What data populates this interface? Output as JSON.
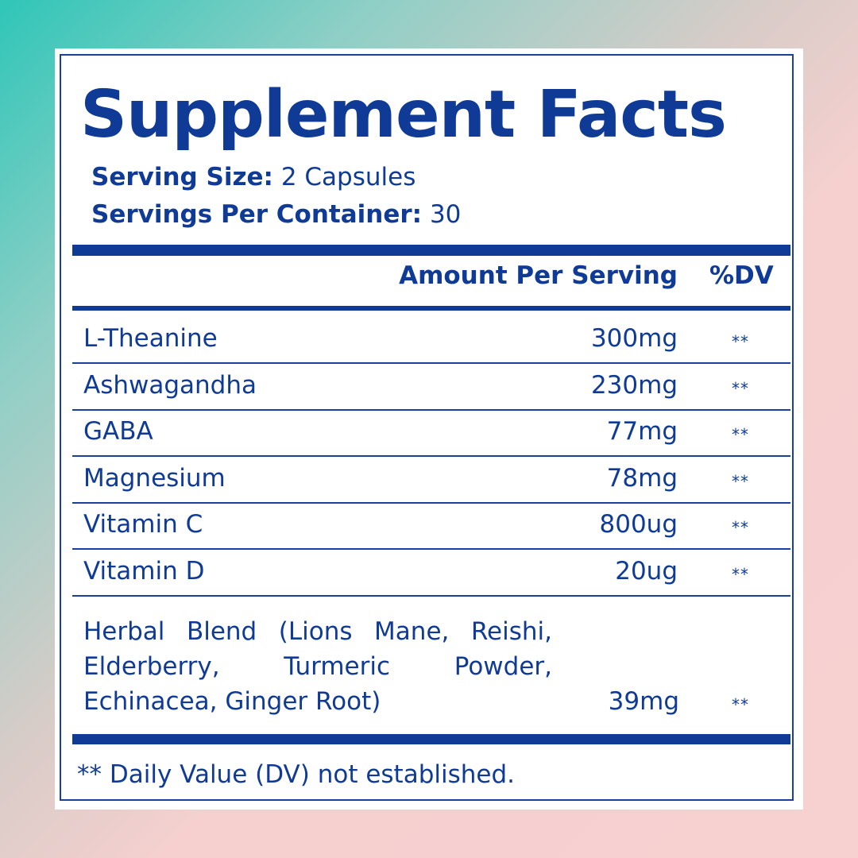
{
  "title": "Supplement Facts",
  "serving_size": {
    "label": "Serving Size:",
    "value": "2 Capsules"
  },
  "servings_per_container": {
    "label": "Servings Per Container:",
    "value": "30"
  },
  "header": {
    "amount": "Amount Per Serving",
    "dv": "%DV"
  },
  "rows": [
    {
      "name": "L-Theanine",
      "amount": "300mg",
      "dv": "**"
    },
    {
      "name": "Ashwagandha",
      "amount": "230mg",
      "dv": "**"
    },
    {
      "name": "GABA",
      "amount": "77mg",
      "dv": "**"
    },
    {
      "name": "Magnesium",
      "amount": "78mg",
      "dv": "**"
    },
    {
      "name": "Vitamin C",
      "amount": "800ug",
      "dv": "**"
    },
    {
      "name": "Vitamin D",
      "amount": "20ug",
      "dv": "**"
    }
  ],
  "herbal": {
    "name": "Herbal Blend  (Lions Mane, Reishi, Elderberry, Turmeric Powder, Echinacea, Ginger Root)",
    "amount": "39mg",
    "dv": "**"
  },
  "footnote": "** Daily Value (DV) not established.",
  "colors": {
    "ink": "#0f3b96",
    "background_start": "#2fc6b8",
    "background_end": "#f7d1d0"
  }
}
